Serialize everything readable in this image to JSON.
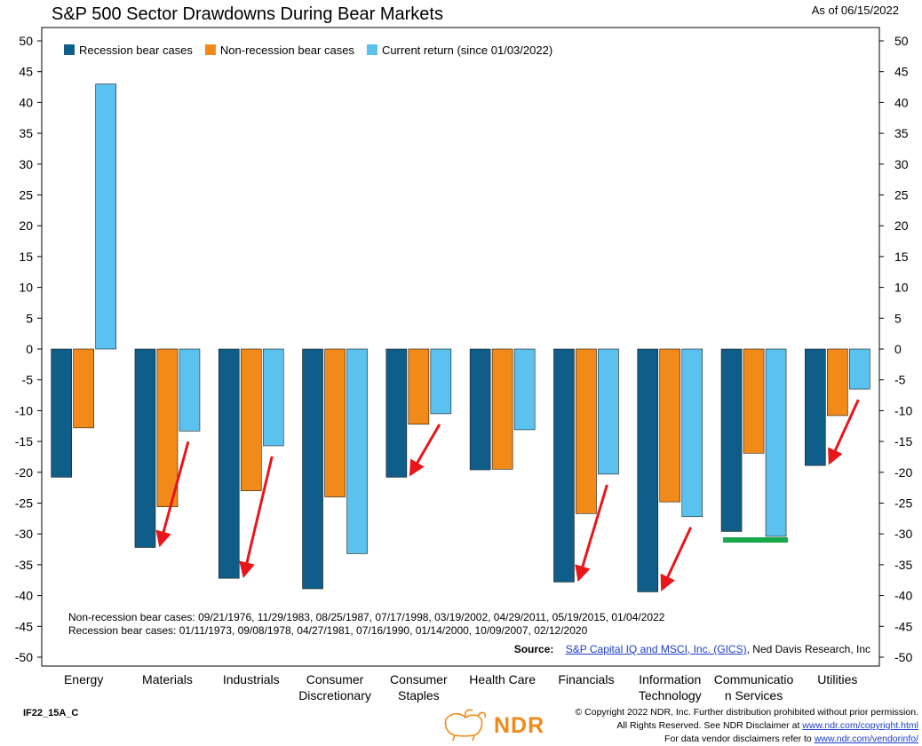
{
  "header": {
    "title": "S&P 500 Sector Drawdowns During Bear Markets",
    "as_of": "As of 06/15/2022"
  },
  "colors": {
    "recession": "#0f5e8a",
    "non_recession": "#f28a1a",
    "current": "#5bc2f0",
    "arrow": "#e8161b",
    "highlight": "#19a84a"
  },
  "chart_data": {
    "type": "bar",
    "categories": [
      "Energy",
      "Materials",
      "Industrials",
      "Consumer Discretionary",
      "Consumer Staples",
      "Health Care",
      "Financials",
      "Information Technology",
      "Communication Services",
      "Utilities"
    ],
    "category_lines": [
      [
        "Energy"
      ],
      [
        "Materials"
      ],
      [
        "Industrials"
      ],
      [
        "Consumer",
        "Discretionary"
      ],
      [
        "Consumer",
        "Staples"
      ],
      [
        "Health Care"
      ],
      [
        "Financials"
      ],
      [
        "Information",
        "Technology"
      ],
      [
        "Communicatio",
        "n Services"
      ],
      [
        "Utilities"
      ]
    ],
    "series": [
      {
        "name": "Recession bear cases",
        "values": [
          -20.8,
          -32.2,
          -37.2,
          -38.9,
          -20.8,
          -19.6,
          -37.8,
          -39.4,
          -29.6,
          -18.9
        ]
      },
      {
        "name": "Non-recession bear cases",
        "values": [
          -12.8,
          -25.6,
          -23.0,
          -24.0,
          -12.2,
          -19.5,
          -26.7,
          -24.8,
          -16.9,
          -10.8
        ]
      },
      {
        "name": "Current return (since 01/03/2022)",
        "values": [
          43.0,
          -13.3,
          -15.7,
          -33.2,
          -10.5,
          -13.1,
          -20.3,
          -27.2,
          -30.4,
          -6.5
        ]
      }
    ],
    "ylim": [
      -50,
      50
    ],
    "ytick_step": 5,
    "yticks_left": [
      "50",
      "45",
      "40",
      "35",
      "30",
      "25",
      "20",
      "15",
      "10",
      "5",
      "0",
      "-5",
      "-10",
      "-15",
      "-20",
      "-25",
      "-30",
      "-35",
      "-40",
      "-45",
      "-50"
    ],
    "yticks_right": [
      "50",
      "45",
      "40",
      "35",
      "30",
      "25",
      "20",
      "15",
      "10",
      "5",
      "0",
      "-5",
      "-10",
      "-15",
      "-20",
      "-25",
      "-30",
      "-35",
      "-40",
      "-45",
      "-50"
    ],
    "legend_position": "top-left",
    "annotations": {
      "arrows_at_categories": [
        1,
        2,
        4,
        6,
        7,
        9
      ],
      "highlight_line_category": 8
    }
  },
  "notes": {
    "non_recession": "Non-recession bear cases: 09/21/1976, 11/29/1983, 08/25/1987, 07/17/1998, 03/19/2002, 04/29/2011, 05/19/2015, 01/04/2022",
    "recession": "Recession bear cases: 01/11/1973, 09/08/1978, 04/27/1981, 07/16/1990, 01/14/2000, 10/09/2007, 02/12/2020"
  },
  "source": {
    "label": "Source:",
    "link": "S&P Capital IQ and MSCI, Inc. (GICS)",
    "rest": ", Ned Davis Research, Inc"
  },
  "footer": {
    "chart_id": "IF22_15A_C",
    "copyright_line1": "© Copyright 2022 NDR, Inc. Further distribution prohibited without prior permission.",
    "copyright_line2_prefix": "All Rights Reserved. See NDR Disclaimer at ",
    "copyright_line2_link": "www.ndr.com/copyright.html",
    "copyright_line3_prefix": "For data vendor disclaimers refer to ",
    "copyright_line3_link": "www.ndr.com/vendorinfo/",
    "logo_text": "NDR"
  }
}
